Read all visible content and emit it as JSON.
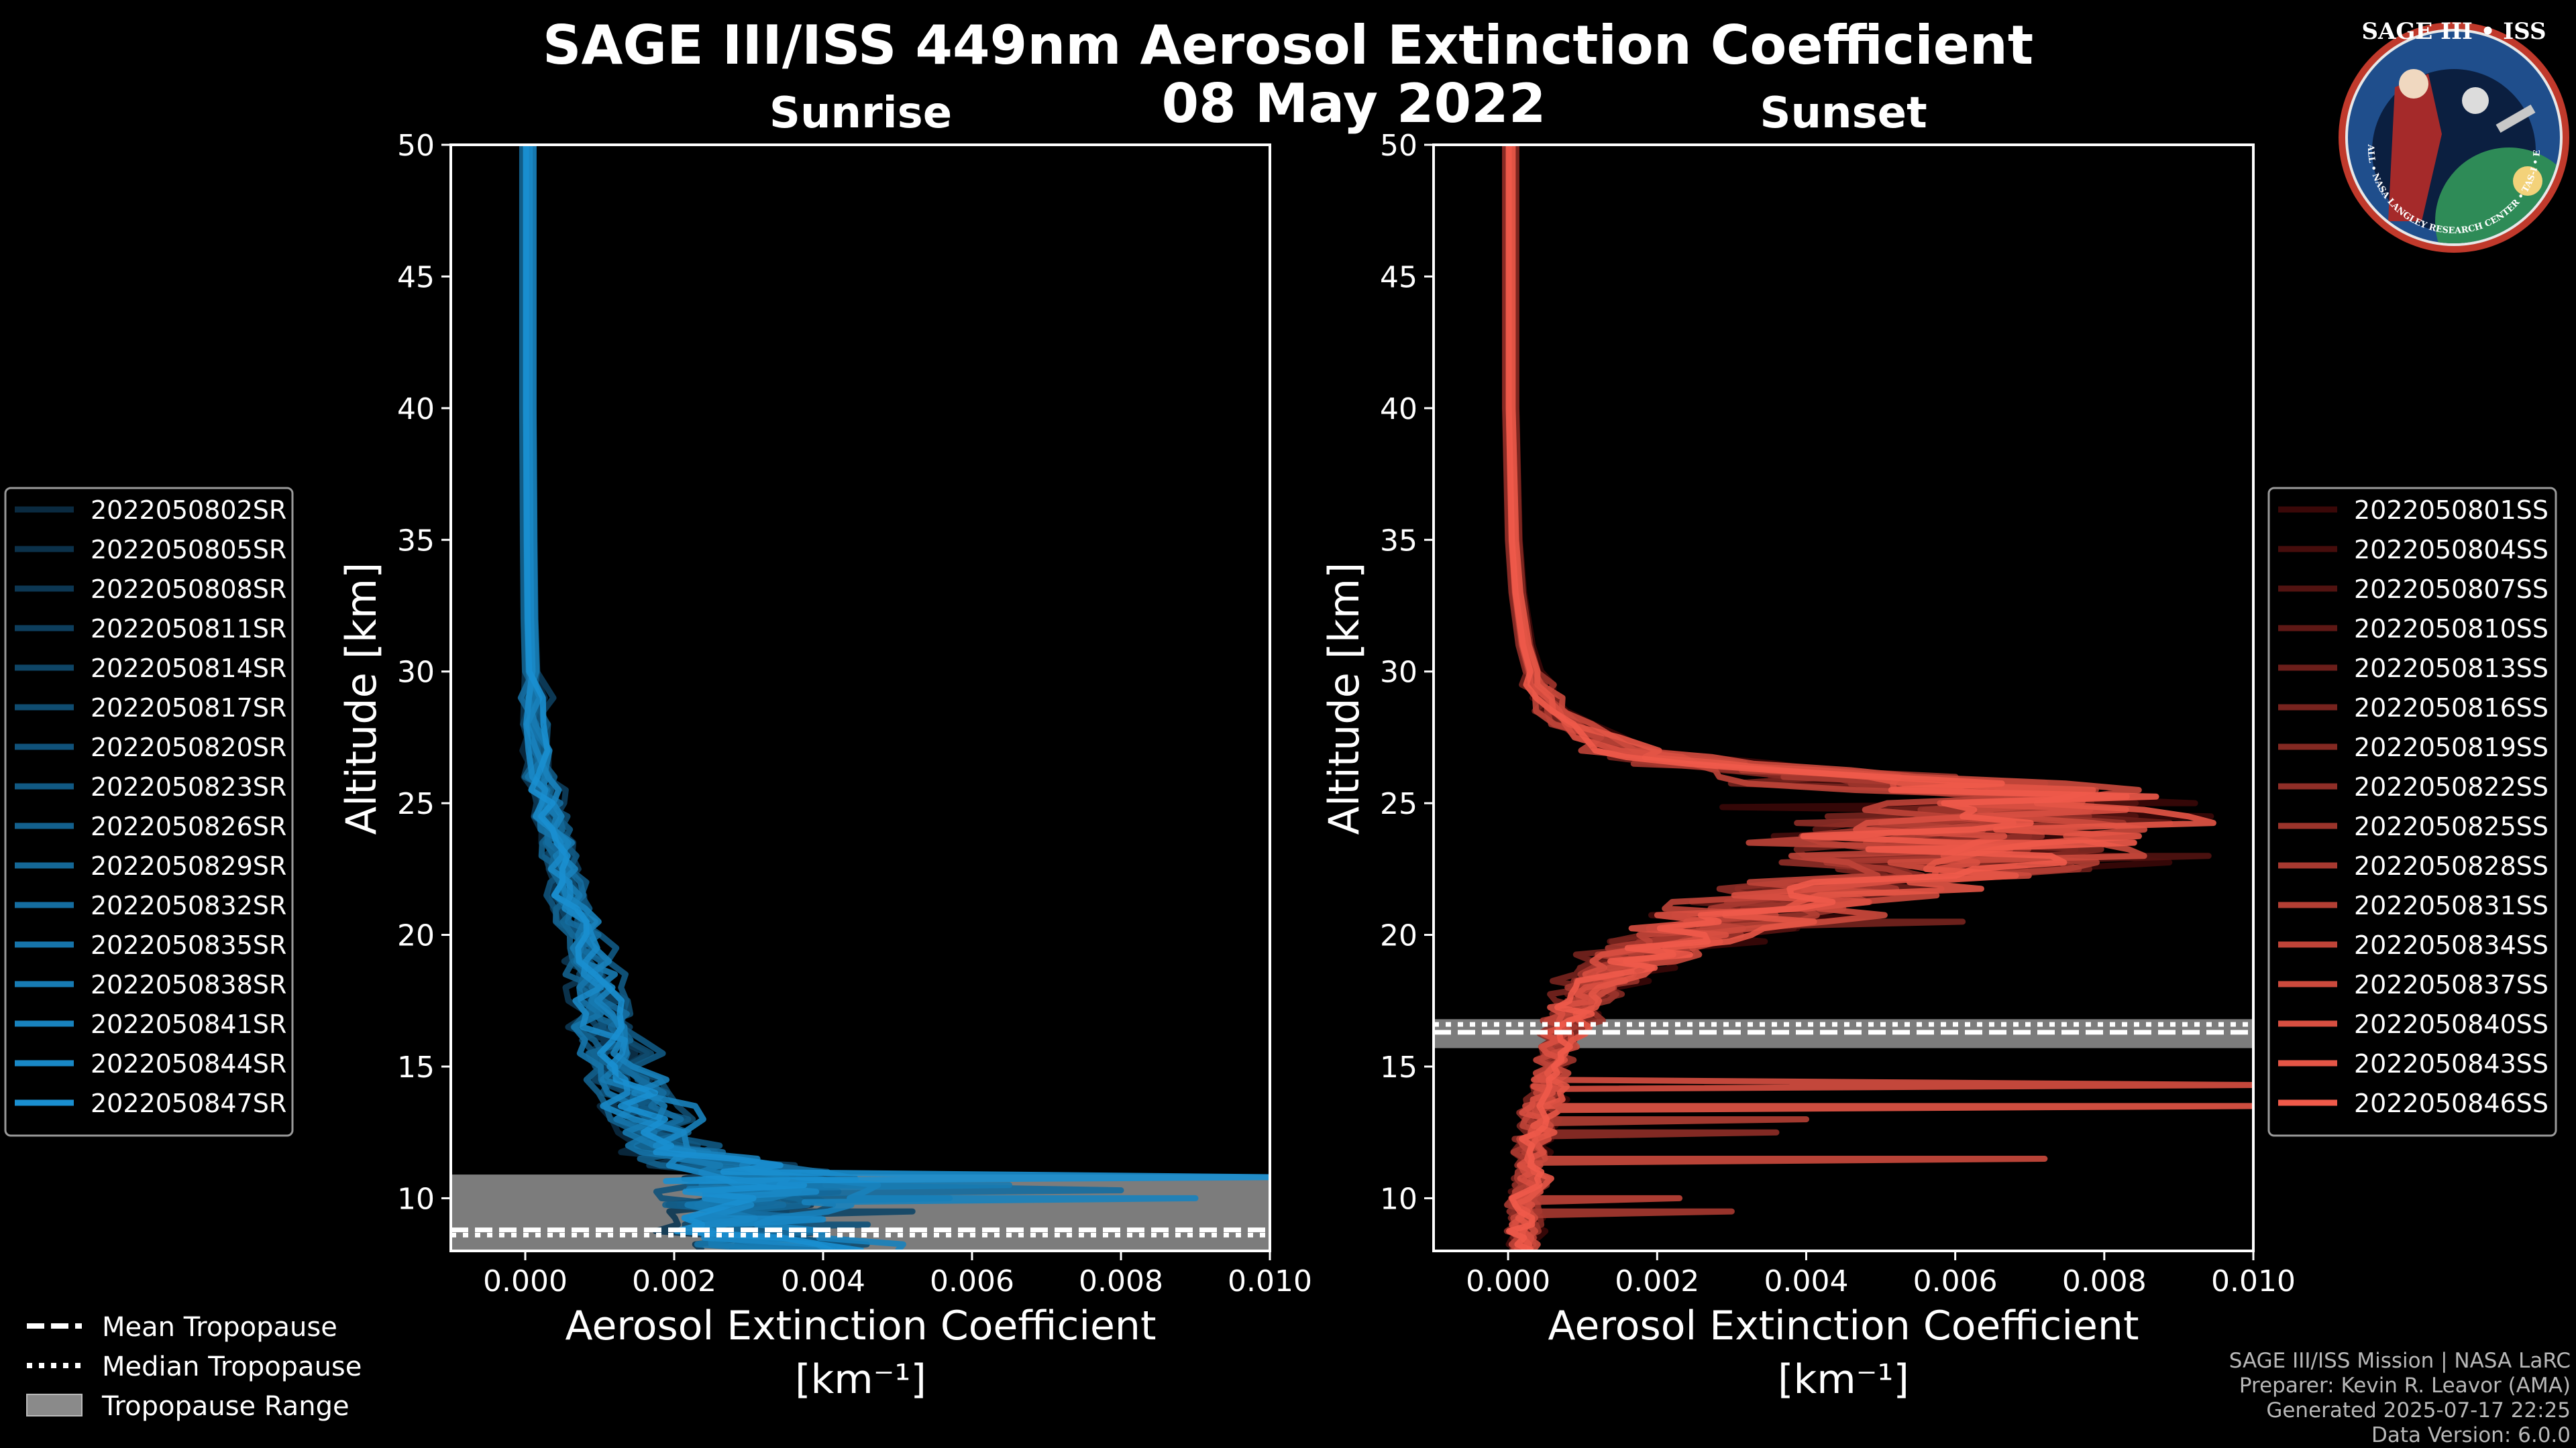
{
  "chart_data": {
    "type": "line",
    "title": "SAGE III/ISS 449nm Aerosol Extinction Coefficient",
    "subtitle": "08 May 2022",
    "panels": [
      {
        "name": "sunrise",
        "title": "Sunrise",
        "xlabel": "Aerosol Extinction Coefficient",
        "xlabel_units": "[km⁻¹]",
        "ylabel": "Altitude [km]",
        "xlim": [
          -0.001,
          0.01
        ],
        "ylim": [
          8,
          50
        ],
        "xticks": [
          0.0,
          0.002,
          0.004,
          0.006,
          0.008,
          0.01
        ],
        "xtick_labels": [
          "0.000",
          "0.002",
          "0.004",
          "0.006",
          "0.008",
          "0.010"
        ],
        "yticks": [
          10,
          15,
          20,
          25,
          30,
          35,
          40,
          45,
          50
        ],
        "ytick_labels": [
          "10",
          "15",
          "20",
          "25",
          "30",
          "35",
          "40",
          "45",
          "50"
        ],
        "color_dark": "#0a2a40",
        "color_light": "#1a8fd0",
        "tropopause": {
          "mean": 8.8,
          "median": 8.6,
          "range": [
            8.0,
            10.9
          ]
        },
        "base_profile": {
          "altitude": [
            50,
            45,
            40,
            35,
            32,
            30,
            28,
            26,
            25,
            24,
            23,
            22,
            21,
            20,
            19,
            18,
            17,
            16,
            15,
            14,
            13,
            12,
            11.5,
            11,
            10.5,
            10,
            9.5,
            9,
            8.5,
            8
          ],
          "extinction": [
            1e-05,
            1e-05,
            1e-05,
            2e-05,
            3e-05,
            5e-05,
            0.0001,
            0.0002,
            0.00025,
            0.00035,
            0.0004,
            0.0005,
            0.0006,
            0.0007,
            0.0008,
            0.0009,
            0.001,
            0.0011,
            0.0012,
            0.0014,
            0.0016,
            0.0018,
            0.0022,
            0.003,
            0.0032,
            0.003,
            0.0028,
            0.0026,
            0.003,
            0.0035
          ]
        },
        "series": [
          {
            "name": "2022050802SR",
            "scale": 0.95,
            "offset": 0.0,
            "spike": null
          },
          {
            "name": "2022050805SR",
            "scale": 1.05,
            "offset": 5e-05,
            "spike": null
          },
          {
            "name": "2022050808SR",
            "scale": 0.9,
            "offset": -5e-05,
            "spike": null
          },
          {
            "name": "2022050811SR",
            "scale": 1.1,
            "offset": 0.0001,
            "spike": null
          },
          {
            "name": "2022050814SR",
            "scale": 1.0,
            "offset": 0.0,
            "spike": {
              "alt": 9.5,
              "value": 0.0052
            }
          },
          {
            "name": "2022050817SR",
            "scale": 1.15,
            "offset": 5e-05,
            "spike": null
          },
          {
            "name": "2022050820SR",
            "scale": 0.85,
            "offset": 0.0,
            "spike": {
              "alt": 9.0,
              "value": 0.0046
            }
          },
          {
            "name": "2022050823SR",
            "scale": 1.2,
            "offset": 0.0001,
            "spike": null
          },
          {
            "name": "2022050826SR",
            "scale": 0.95,
            "offset": -5e-05,
            "spike": {
              "alt": 10.0,
              "value": 0.0057
            }
          },
          {
            "name": "2022050829SR",
            "scale": 1.05,
            "offset": 0.0,
            "spike": null
          },
          {
            "name": "2022050832SR",
            "scale": 1.1,
            "offset": 5e-05,
            "spike": {
              "alt": 10.3,
              "value": 0.008
            }
          },
          {
            "name": "2022050835SR",
            "scale": 0.9,
            "offset": 0.0,
            "spike": null
          },
          {
            "name": "2022050838SR",
            "scale": 1.0,
            "offset": 0.0001,
            "spike": {
              "alt": 10.5,
              "value": 0.0065
            }
          },
          {
            "name": "2022050841SR",
            "scale": 1.25,
            "offset": 0.0,
            "spike": {
              "alt": 10.0,
              "value": 0.009
            }
          },
          {
            "name": "2022050844SR",
            "scale": 0.95,
            "offset": 5e-05,
            "spike": {
              "alt": 9.2,
              "value": 0.004
            }
          },
          {
            "name": "2022050847SR",
            "scale": 1.05,
            "offset": 0.0,
            "spike": {
              "alt": 10.8,
              "value": 0.01
            }
          }
        ]
      },
      {
        "name": "sunset",
        "title": "Sunset",
        "xlabel": "Aerosol Extinction Coefficient",
        "xlabel_units": "[km⁻¹]",
        "ylabel": "Altitude [km]",
        "xlim": [
          -0.001,
          0.01
        ],
        "ylim": [
          8,
          50
        ],
        "xticks": [
          0.0,
          0.002,
          0.004,
          0.006,
          0.008,
          0.01
        ],
        "xtick_labels": [
          "0.000",
          "0.002",
          "0.004",
          "0.006",
          "0.008",
          "0.010"
        ],
        "yticks": [
          10,
          15,
          20,
          25,
          30,
          35,
          40,
          45,
          50
        ],
        "ytick_labels": [
          "10",
          "15",
          "20",
          "25",
          "30",
          "35",
          "40",
          "45",
          "50"
        ],
        "color_dark": "#3a0808",
        "color_light": "#f05a4a",
        "tropopause": {
          "mean": 16.3,
          "median": 16.6,
          "range": [
            15.7,
            16.8
          ]
        },
        "base_profile": {
          "altitude": [
            50,
            45,
            40,
            35,
            33,
            31,
            30,
            29,
            28,
            27,
            26.5,
            26,
            25.5,
            25,
            24.5,
            24,
            23.5,
            23,
            22.5,
            22,
            21.5,
            21,
            20.5,
            20,
            19.5,
            19,
            18.5,
            18,
            17.5,
            17,
            16.5,
            16,
            15.5,
            15,
            14.5,
            14,
            13.5,
            13,
            12.5,
            12,
            11.5,
            11,
            10.5,
            10,
            9.5,
            9,
            8.5,
            8
          ],
          "extinction": [
            1e-05,
            1e-05,
            1e-05,
            5e-05,
            0.0001,
            0.0002,
            0.0003,
            0.0005,
            0.0008,
            0.0015,
            0.0025,
            0.0045,
            0.0062,
            0.007,
            0.0068,
            0.006,
            0.0055,
            0.0065,
            0.0058,
            0.0045,
            0.004,
            0.0035,
            0.003,
            0.0025,
            0.002,
            0.0016,
            0.0013,
            0.0011,
            0.001,
            0.0009,
            0.0008,
            0.0007,
            0.0006,
            0.0006,
            0.0005,
            0.0005,
            0.0004,
            0.0004,
            0.0004,
            0.0003,
            0.0003,
            0.0003,
            0.0003,
            0.0002,
            0.0002,
            0.0002,
            0.0002,
            0.0002
          ]
        },
        "series": [
          {
            "name": "2022050801SS",
            "scale": 1.15,
            "offset": 0.0001,
            "spike": {
              "alt": 25.0,
              "value": 0.0084
            }
          },
          {
            "name": "2022050804SS",
            "scale": 0.95,
            "offset": 0.0,
            "spike": null
          },
          {
            "name": "2022050807SS",
            "scale": 1.1,
            "offset": -5e-05,
            "spike": {
              "alt": 23.0,
              "value": 0.0094
            }
          },
          {
            "name": "2022050810SS",
            "scale": 0.9,
            "offset": 5e-05,
            "spike": null
          },
          {
            "name": "2022050813SS",
            "scale": 1.05,
            "offset": 0.0,
            "spike": {
              "alt": 22.5,
              "value": 0.0078
            }
          },
          {
            "name": "2022050816SS",
            "scale": 0.85,
            "offset": 0.0,
            "spike": {
              "alt": 20.5,
              "value": 0.0061
            }
          },
          {
            "name": "2022050819SS",
            "scale": 1.0,
            "offset": 0.0001,
            "spike": null
          },
          {
            "name": "2022050822SS",
            "scale": 0.95,
            "offset": -5e-05,
            "spike": {
              "alt": 12.5,
              "value": 0.0036
            }
          },
          {
            "name": "2022050825SS",
            "scale": 1.1,
            "offset": 5e-05,
            "spike": null
          },
          {
            "name": "2022050828SS",
            "scale": 0.9,
            "offset": 0.0,
            "spike": {
              "alt": 9.5,
              "value": 0.003
            }
          },
          {
            "name": "2022050831SS",
            "scale": 1.05,
            "offset": 0.0,
            "spike": {
              "alt": 13.0,
              "value": 0.004
            }
          },
          {
            "name": "2022050834SS",
            "scale": 0.8,
            "offset": 5e-05,
            "spike": {
              "alt": 10.0,
              "value": 0.0023
            }
          },
          {
            "name": "2022050837SS",
            "scale": 1.2,
            "offset": 0.0,
            "spike": {
              "alt": 11.5,
              "value": 0.0072
            }
          },
          {
            "name": "2022050840SS",
            "scale": 0.95,
            "offset": 0.0,
            "spike": {
              "alt": 14.3,
              "value": 0.01
            }
          },
          {
            "name": "2022050843SS",
            "scale": 1.15,
            "offset": 5e-05,
            "spike": {
              "alt": 13.5,
              "value": 0.01
            }
          },
          {
            "name": "2022050846SS",
            "scale": 1.0,
            "offset": 0.0,
            "spike": {
              "alt": 23.5,
              "value": 0.0084
            }
          }
        ]
      }
    ],
    "legend_tropopause": [
      {
        "label": "Mean Tropopause",
        "style": "dashed"
      },
      {
        "label": "Median Tropopause",
        "style": "dotted"
      },
      {
        "label": "Tropopause Range",
        "style": "patch"
      }
    ]
  },
  "footer": {
    "line1": "SAGE III/ISS Mission | NASA LaRC",
    "line2": "Preparer: Kevin R. Leavor (AMA)",
    "line3": "Generated 2025-07-17 22:25",
    "line4": "Data Version: 6.0.0"
  },
  "logo": {
    "title": "SAGE III • ISS",
    "ring_text": "BALL • NASA LANGLEY RESEARCH CENTER • TAS-I • ESA",
    "colors": {
      "ring": "#1f4e8c",
      "border": "#c0392b",
      "space": "#0b1f40",
      "earth": "#2e8b57"
    }
  },
  "colors": {
    "background": "#000000",
    "axes": "#ffffff",
    "tropopause_patch": "#8a8a8a"
  }
}
